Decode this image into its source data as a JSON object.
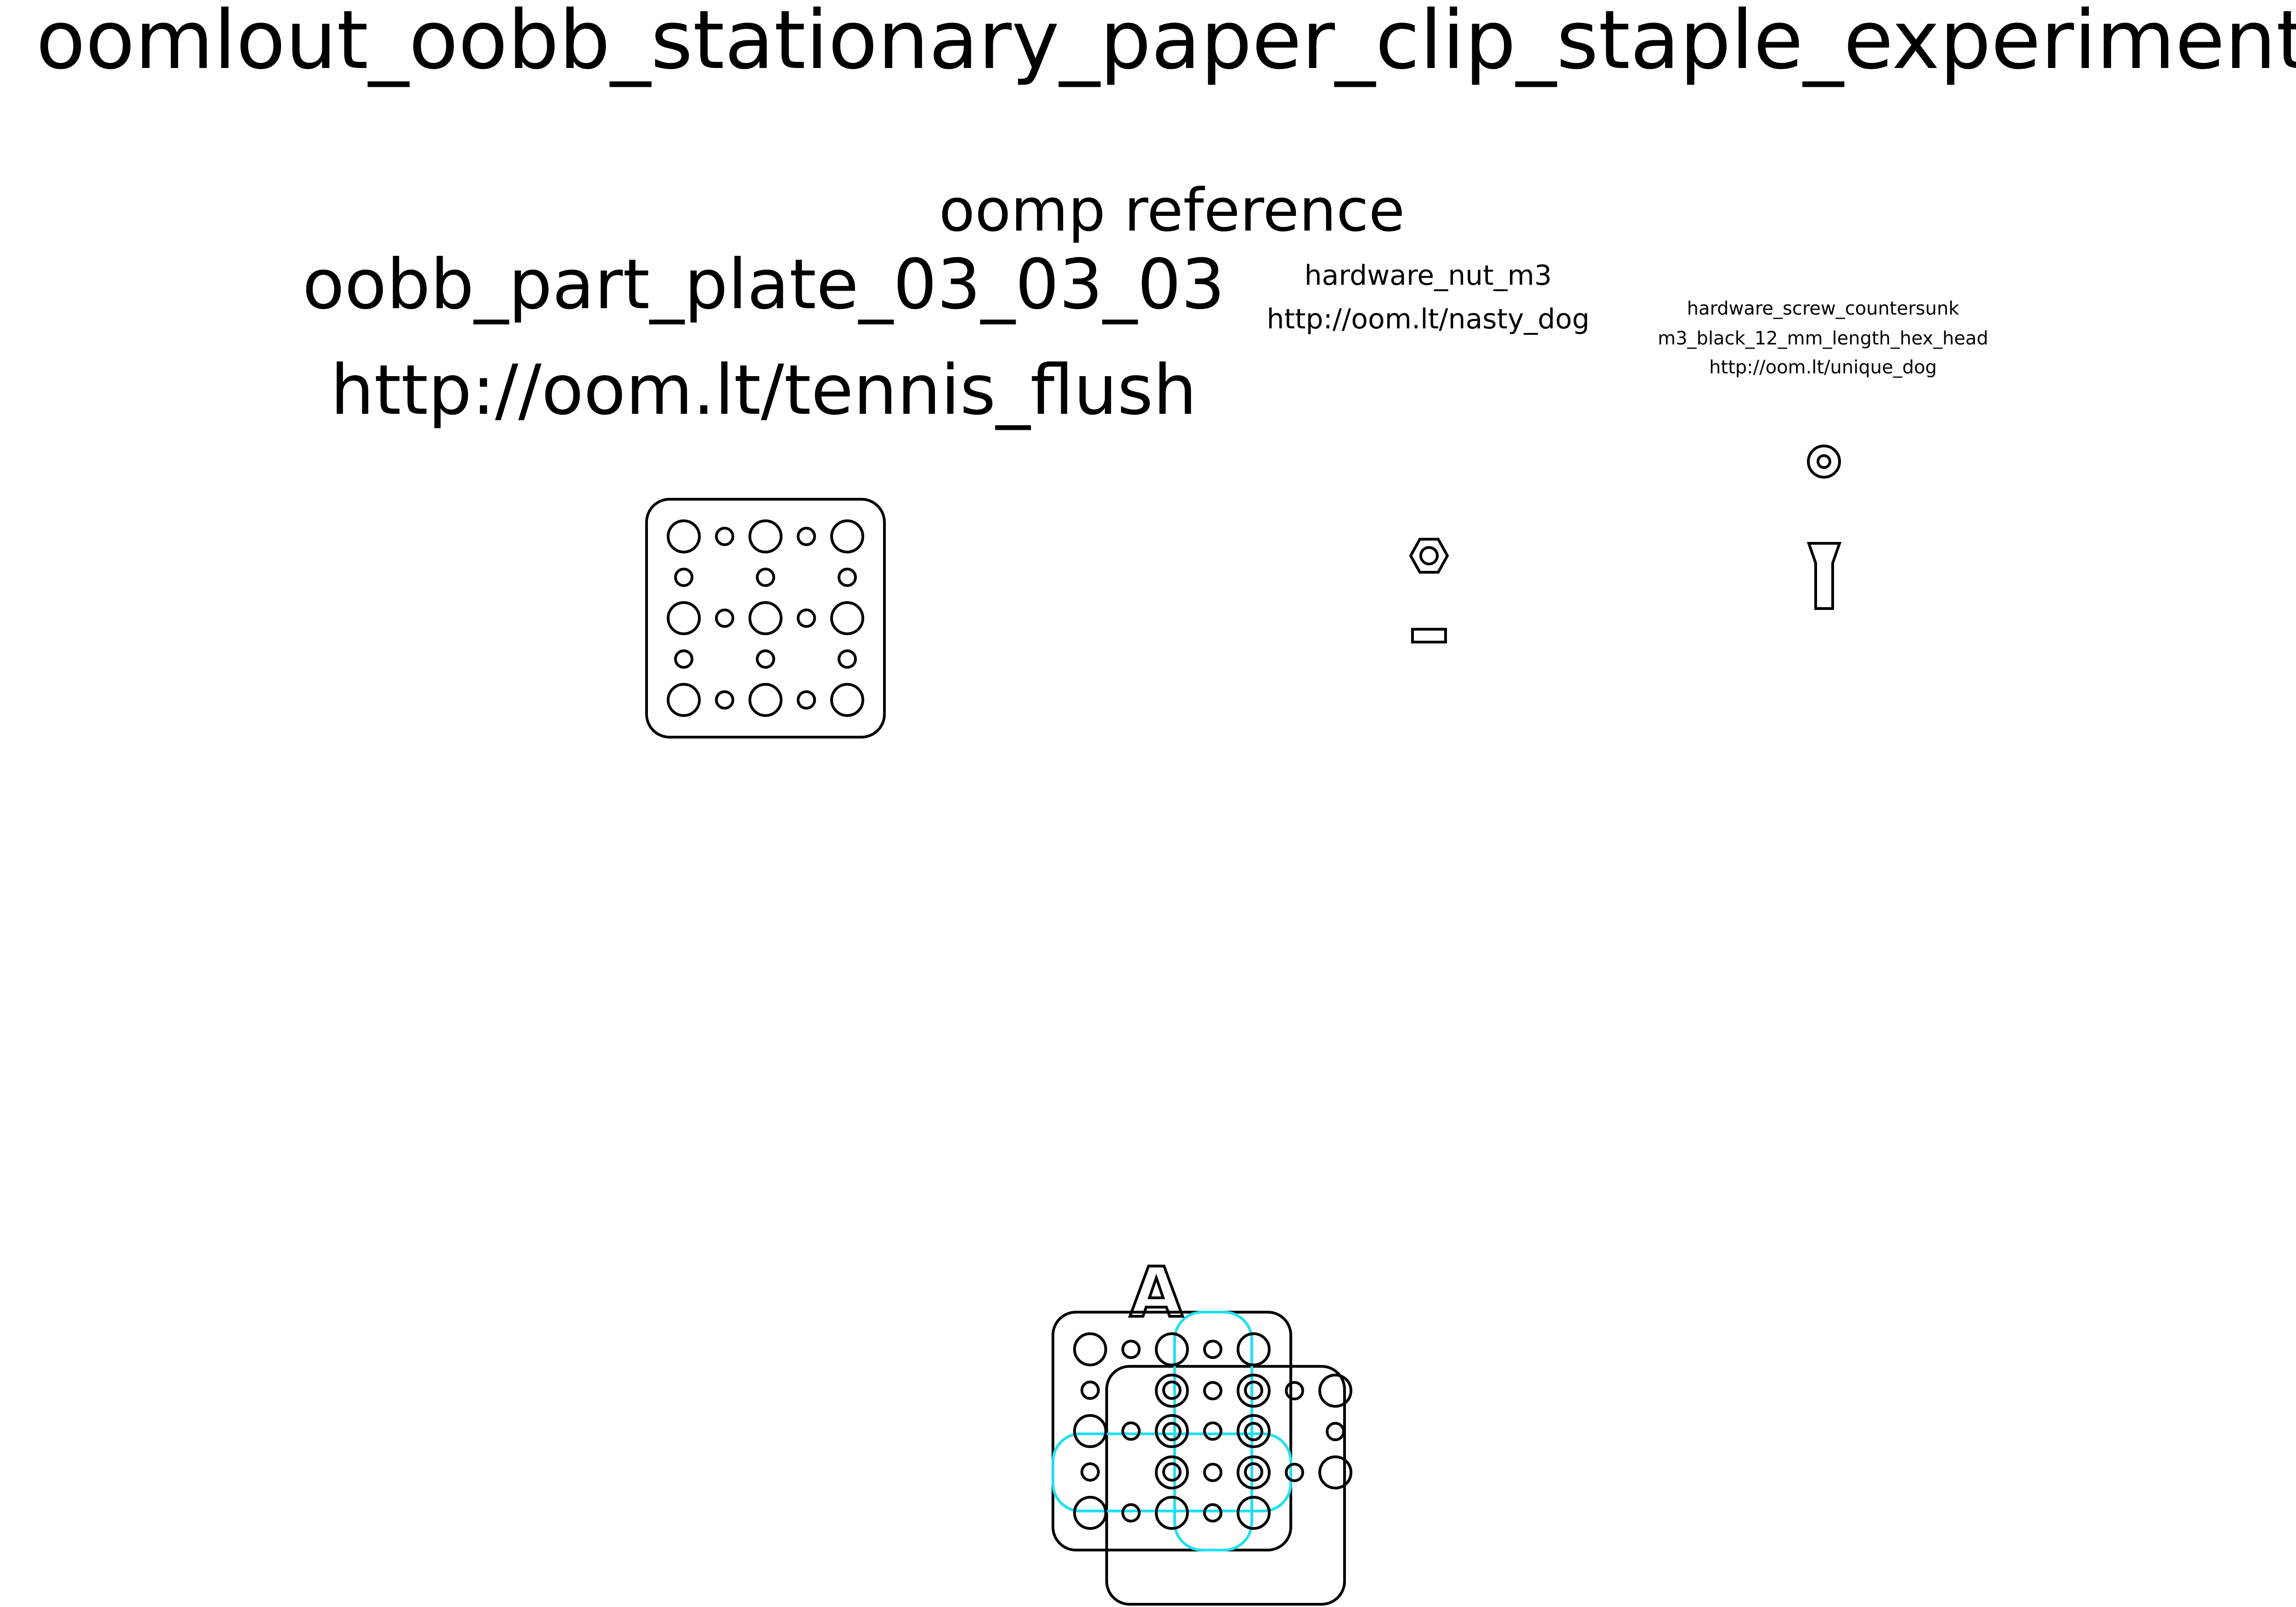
{
  "title": "oomlout_oobb_stationary_paper_clip_staple_experiment",
  "oomp_reference_label": "oomp reference",
  "part": {
    "name": "oobb_part_plate_03_03_03",
    "url": "http://oom.lt/tennis_flush"
  },
  "hardware": [
    {
      "name": "hardware_nut_m3",
      "url": "http://oom.lt/nasty_dog"
    },
    {
      "name": "hardware_screw_countersunk",
      "description": "m3_black_12_mm_length_hex_head",
      "url": "http://oom.lt/unique_dog"
    }
  ],
  "assembly": {
    "engraved_letter": "A"
  },
  "colors": {
    "outline": "#000000",
    "highlight": "#22e0ee",
    "background": "#ffffff"
  }
}
